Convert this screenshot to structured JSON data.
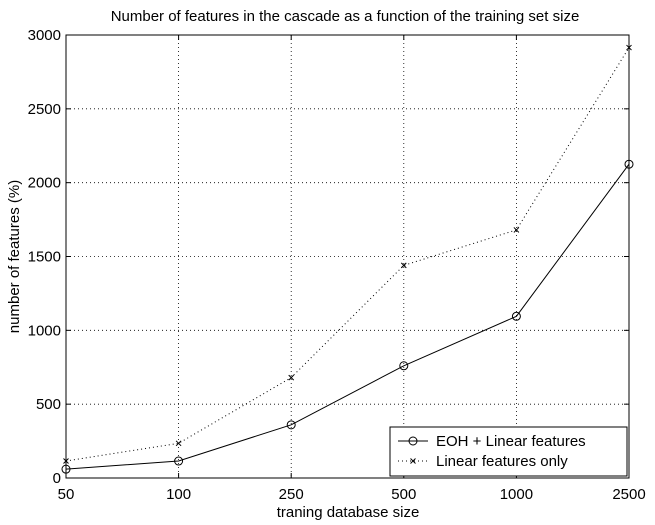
{
  "chart_data": {
    "type": "line",
    "title": "Number of features in the cascade as a function of the training set size",
    "xlabel": "traning database size",
    "ylabel": "number of features (%)",
    "categories": [
      "50",
      "100",
      "250",
      "500",
      "1000",
      "2500"
    ],
    "ylim": [
      0,
      3000
    ],
    "yticks": [
      "0",
      "500",
      "1000",
      "1500",
      "2000",
      "2500",
      "3000"
    ],
    "grid": true,
    "legend_position": "bottom-right",
    "series": [
      {
        "name": "EOH + Linear features",
        "values": [
          60,
          115,
          360,
          760,
          1095,
          2125
        ],
        "marker": "circle",
        "line_style": "solid",
        "color": "#000000"
      },
      {
        "name": "Linear features only",
        "values": [
          115,
          235,
          680,
          1440,
          1680,
          2915
        ],
        "marker": "x",
        "line_style": "dotted",
        "color": "#000000"
      }
    ]
  }
}
